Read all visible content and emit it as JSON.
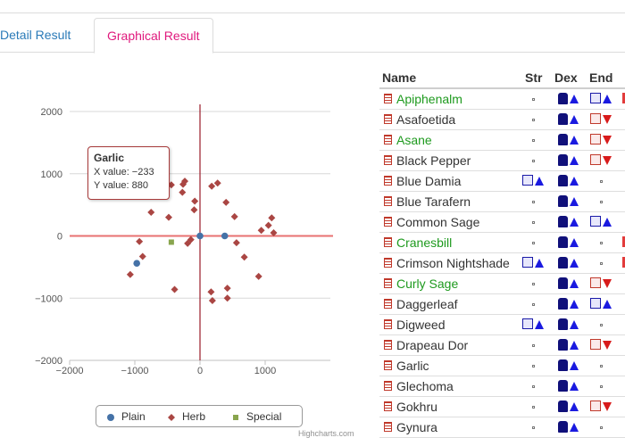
{
  "tabs": [
    {
      "label": "Detail Result"
    },
    {
      "label": "Graphical Result"
    }
  ],
  "chart_data": {
    "type": "scatter",
    "title": "",
    "xlabel": "",
    "ylabel": "",
    "xlim": [
      -2000,
      2000
    ],
    "ylim": [
      -2000,
      2000
    ],
    "x_ticks": [
      "−2000",
      "−1000",
      "0",
      "1000"
    ],
    "y_ticks": [
      "2000",
      "1000",
      "0",
      "−1000",
      "−2000"
    ],
    "series": [
      {
        "name": "Plain",
        "color": "#4572a7",
        "symbol": "circle",
        "points": [
          [
            -970,
            -440
          ],
          [
            0,
            0
          ],
          [
            380,
            0
          ]
        ]
      },
      {
        "name": "Herb",
        "color": "#aa4643",
        "symbol": "diamond",
        "points": [
          [
            -233,
            880
          ],
          [
            -260,
            830
          ],
          [
            -270,
            700
          ],
          [
            -440,
            820
          ],
          [
            -480,
            300
          ],
          [
            -750,
            380
          ],
          [
            -930,
            -90
          ],
          [
            -880,
            -330
          ],
          [
            -1070,
            -620
          ],
          [
            -140,
            -60
          ],
          [
            -190,
            -120
          ],
          [
            -80,
            560
          ],
          [
            -90,
            420
          ],
          [
            180,
            800
          ],
          [
            270,
            850
          ],
          [
            400,
            540
          ],
          [
            530,
            310
          ],
          [
            560,
            -110
          ],
          [
            680,
            -340
          ],
          [
            900,
            -650
          ],
          [
            940,
            90
          ],
          [
            1050,
            170
          ],
          [
            1100,
            290
          ],
          [
            1130,
            50
          ],
          [
            170,
            -900
          ],
          [
            190,
            -1040
          ],
          [
            420,
            -840
          ],
          [
            420,
            -1000
          ],
          [
            -390,
            -860
          ]
        ]
      },
      {
        "name": "Special",
        "color": "#89a54e",
        "symbol": "square",
        "points": [
          [
            -440,
            -100
          ]
        ]
      }
    ],
    "crosshair": {
      "x": 0,
      "y": 0
    },
    "legend": "bottom-center",
    "tooltip": {
      "title": "Garlic",
      "x_line": "X value: −233",
      "y_line": "Y value: 880"
    },
    "credit": "Highcharts.com"
  },
  "table": {
    "headers": [
      "Name",
      "Str",
      "Dex",
      "End"
    ],
    "rows": [
      {
        "name": "Apiphenalm",
        "color": "green",
        "str": "dot",
        "dex": "run-up",
        "end": "box-blue-up",
        "edge": true
      },
      {
        "name": "Asafoetida",
        "color": "dark",
        "str": "dot",
        "dex": "run-up",
        "end": "box-red-down"
      },
      {
        "name": "Asane",
        "color": "green",
        "str": "dot",
        "dex": "run-up",
        "end": "box-red-down"
      },
      {
        "name": "Black Pepper",
        "color": "dark",
        "str": "dot",
        "dex": "run-up",
        "end": "box-red-down"
      },
      {
        "name": "Blue Damia",
        "color": "dark",
        "str": "box-blue-up",
        "dex": "run-up",
        "end": "dot"
      },
      {
        "name": "Blue Tarafern",
        "color": "dark",
        "str": "dot",
        "dex": "run-up",
        "end": "dot"
      },
      {
        "name": "Common Sage",
        "color": "dark",
        "str": "dot",
        "dex": "run-up",
        "end": "box-blue-up"
      },
      {
        "name": "Cranesbill",
        "color": "green",
        "str": "dot",
        "dex": "run-up",
        "end": "dot",
        "edge": true
      },
      {
        "name": "Crimson Nightshade",
        "color": "dark",
        "str": "box-blue-up",
        "dex": "run-up",
        "end": "dot",
        "edge": true
      },
      {
        "name": "Curly Sage",
        "color": "green",
        "str": "dot",
        "dex": "run-up",
        "end": "box-red-down"
      },
      {
        "name": "Daggerleaf",
        "color": "dark",
        "str": "dot",
        "dex": "run-up",
        "end": "box-blue-up"
      },
      {
        "name": "Digweed",
        "color": "dark",
        "str": "box-blue-up",
        "dex": "run-up",
        "end": "dot"
      },
      {
        "name": "Drapeau Dor",
        "color": "dark",
        "str": "dot",
        "dex": "run-up",
        "end": "box-red-down"
      },
      {
        "name": "Garlic",
        "color": "dark",
        "str": "dot",
        "dex": "run-up",
        "end": "dot"
      },
      {
        "name": "Glechoma",
        "color": "dark",
        "str": "dot",
        "dex": "run-up",
        "end": "dot"
      },
      {
        "name": "Gokhru",
        "color": "dark",
        "str": "dot",
        "dex": "run-up",
        "end": "box-red-down"
      },
      {
        "name": "Gynura",
        "color": "dark",
        "str": "dot",
        "dex": "run-up",
        "end": "dot"
      }
    ]
  }
}
